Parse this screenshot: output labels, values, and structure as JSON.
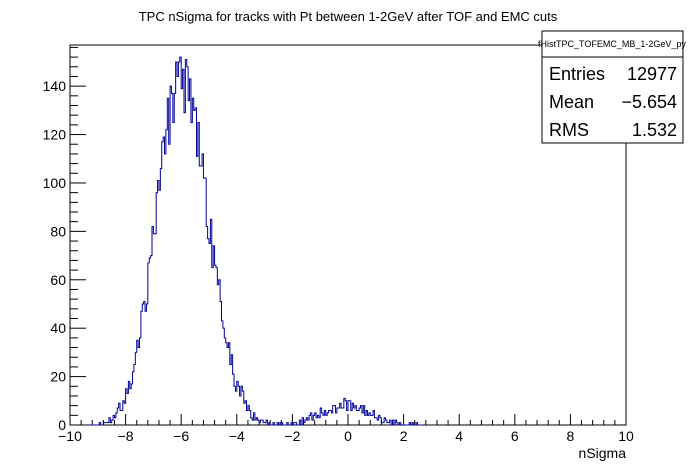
{
  "chart_data": {
    "type": "histogram",
    "title": "TPC nSigma for tracks with Pt between 1-2GeV after TOF and EMC cuts",
    "xlabel": "nSigma",
    "ylabel": "",
    "xlim": [
      -10,
      10
    ],
    "ylim": [
      0,
      157
    ],
    "x_ticks": [
      "−10",
      "−8",
      "−6",
      "−4",
      "−2",
      "0",
      "2",
      "4",
      "6",
      "8",
      "10"
    ],
    "x_tick_values": [
      -10,
      -8,
      -6,
      -4,
      -2,
      0,
      2,
      4,
      6,
      8,
      10
    ],
    "y_ticks": [
      "0",
      "20",
      "40",
      "60",
      "80",
      "100",
      "120",
      "140"
    ],
    "y_tick_values": [
      0,
      20,
      40,
      60,
      80,
      100,
      120,
      140
    ],
    "line_color": "#000099",
    "stats_box": {
      "name": "fHistTPC_TOFEMC_MB_1-2GeV_py",
      "entries_label": "Entries",
      "entries_value": "12977",
      "mean_label": "Mean",
      "mean_value": "−5.654",
      "rms_label": "RMS",
      "rms_value": "1.532"
    },
    "peaks": [
      {
        "name": "main",
        "center": -6.0,
        "sigma": 0.9,
        "amplitude": 142
      },
      {
        "name": "secondary",
        "center": -0.1,
        "sigma": 0.85,
        "amplitude": 8
      }
    ],
    "bin_width": 0.05
  }
}
